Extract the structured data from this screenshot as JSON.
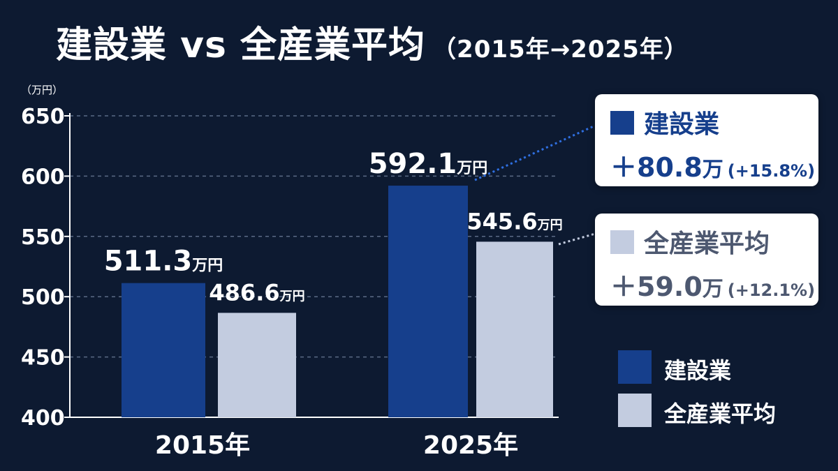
{
  "header": {
    "title": "建設業 vs 全産業平均",
    "subtitle": "（2015年→2025年）"
  },
  "colors": {
    "background": "#0d1a31",
    "construction": "#163f8c",
    "all_industry": "#c3cce0",
    "construction_text": "#163f8c",
    "all_industry_text": "#4d5870",
    "connector_construction": "#2f6fe0",
    "connector_all": "#c3cce0"
  },
  "callouts": {
    "construction": {
      "name": "建設業",
      "diff": "＋80.8",
      "unit": "万",
      "pct": "(+15.8%)"
    },
    "all_industry": {
      "name": "全産業平均",
      "diff": "＋59.0",
      "unit": "万",
      "pct": "(+12.1%)"
    }
  },
  "legend": {
    "construction": "建設業",
    "all_industry": "全産業平均"
  },
  "chart_data": {
    "type": "bar",
    "ylabel": "（万円）",
    "ylim": [
      400,
      650
    ],
    "yticks": [
      400,
      450,
      500,
      550,
      600,
      650
    ],
    "grid": true,
    "categories": [
      "2015年",
      "2025年"
    ],
    "value_unit": "万円",
    "series": [
      {
        "name": "建設業",
        "values": [
          511.3,
          592.1
        ],
        "labels": [
          "511.3",
          "592.1"
        ]
      },
      {
        "name": "全産業平均",
        "values": [
          486.6,
          545.6
        ],
        "labels": [
          "486.6",
          "545.6"
        ]
      }
    ],
    "legend_position": "right"
  }
}
